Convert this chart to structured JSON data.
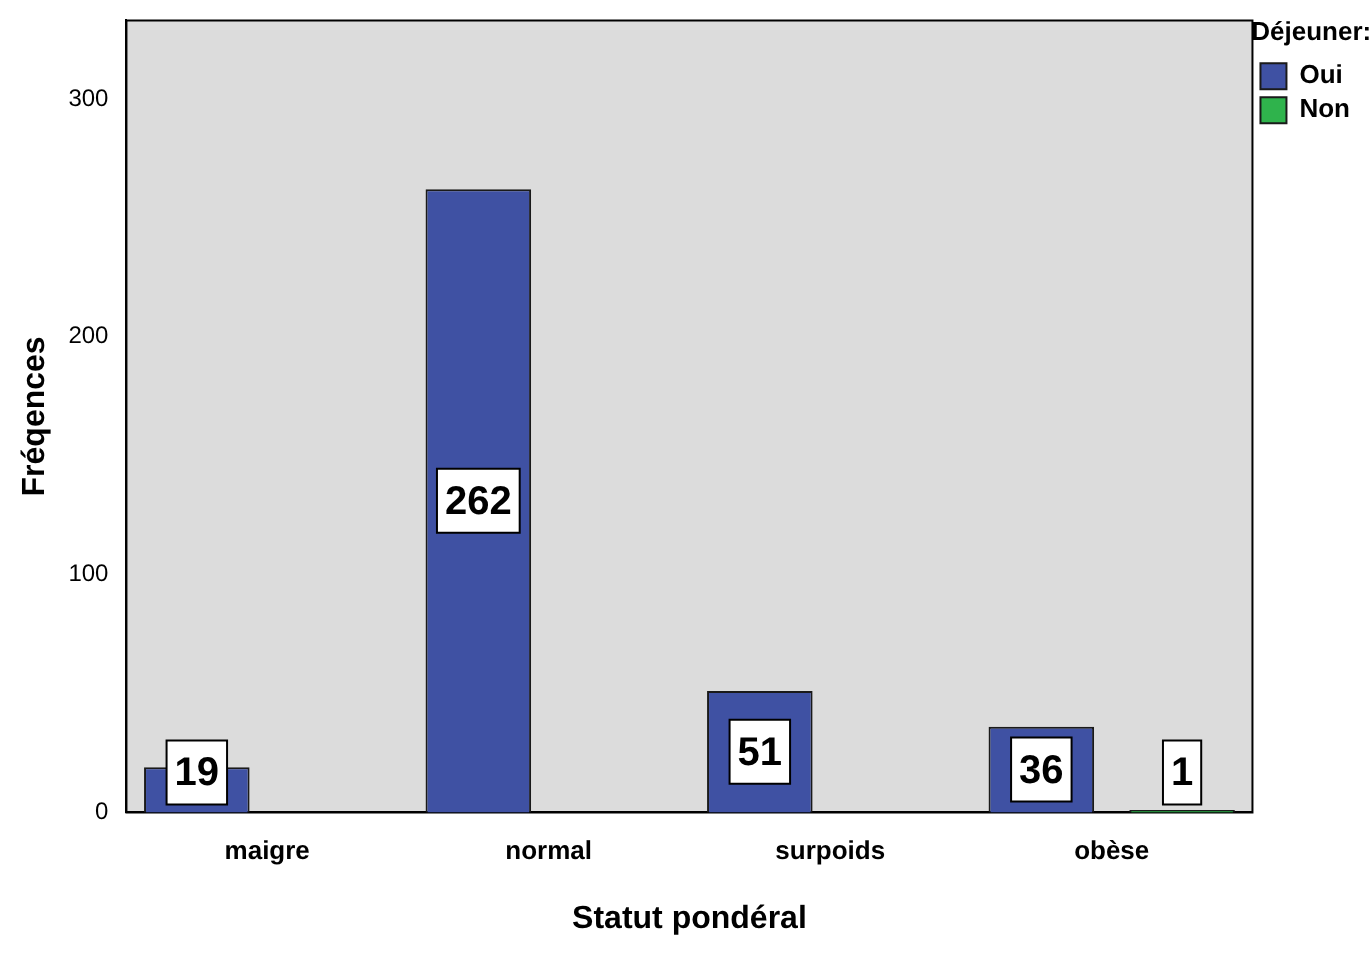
{
  "chart_data": {
    "type": "bar",
    "xlabel": "Statut pondéral",
    "ylabel": "Fréqences",
    "legend_title": "Déjeuner:",
    "categories": [
      "maigre",
      "normal",
      "surpoids",
      "obèse"
    ],
    "series": [
      {
        "name": "Oui",
        "color": "#3f51a3",
        "values": [
          19,
          262,
          51,
          36
        ],
        "value_labels": [
          "19",
          "262",
          "51",
          "36"
        ]
      },
      {
        "name": "Non",
        "color": "#2fb34c",
        "values": [
          0,
          0,
          0,
          1
        ],
        "value_labels": [
          null,
          null,
          null,
          "1"
        ]
      }
    ],
    "ylim": [
      0,
      333
    ],
    "yticks": [
      0,
      100,
      200,
      300
    ],
    "grid": false,
    "legend": "top right"
  }
}
